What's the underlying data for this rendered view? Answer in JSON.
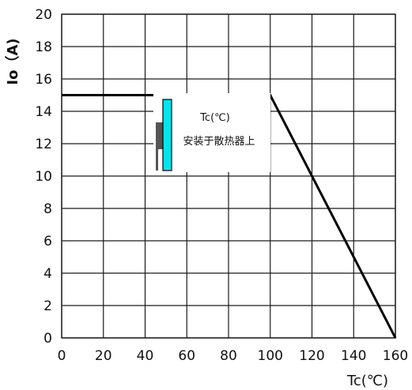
{
  "chart_data": {
    "type": "line",
    "ylabel": "Io（A)",
    "xlabel": "Tc(℃)",
    "xlim": [
      0,
      160
    ],
    "ylim": [
      0,
      20
    ],
    "x_ticks": [
      0,
      20,
      40,
      60,
      80,
      100,
      120,
      140,
      160
    ],
    "y_ticks": [
      0,
      2,
      4,
      6,
      8,
      10,
      12,
      14,
      16,
      18,
      20
    ],
    "grid": true,
    "series": [
      {
        "x": [
          0,
          100,
          160
        ],
        "y": [
          15,
          15,
          0
        ]
      }
    ],
    "annotation": {
      "line1": "Tc(℃)",
      "line2": "安装于散热器上"
    },
    "colors": {
      "line": "#000000",
      "grid": "#1a1a1a",
      "heatsink": "#00e5ee",
      "device": "#555555"
    }
  }
}
